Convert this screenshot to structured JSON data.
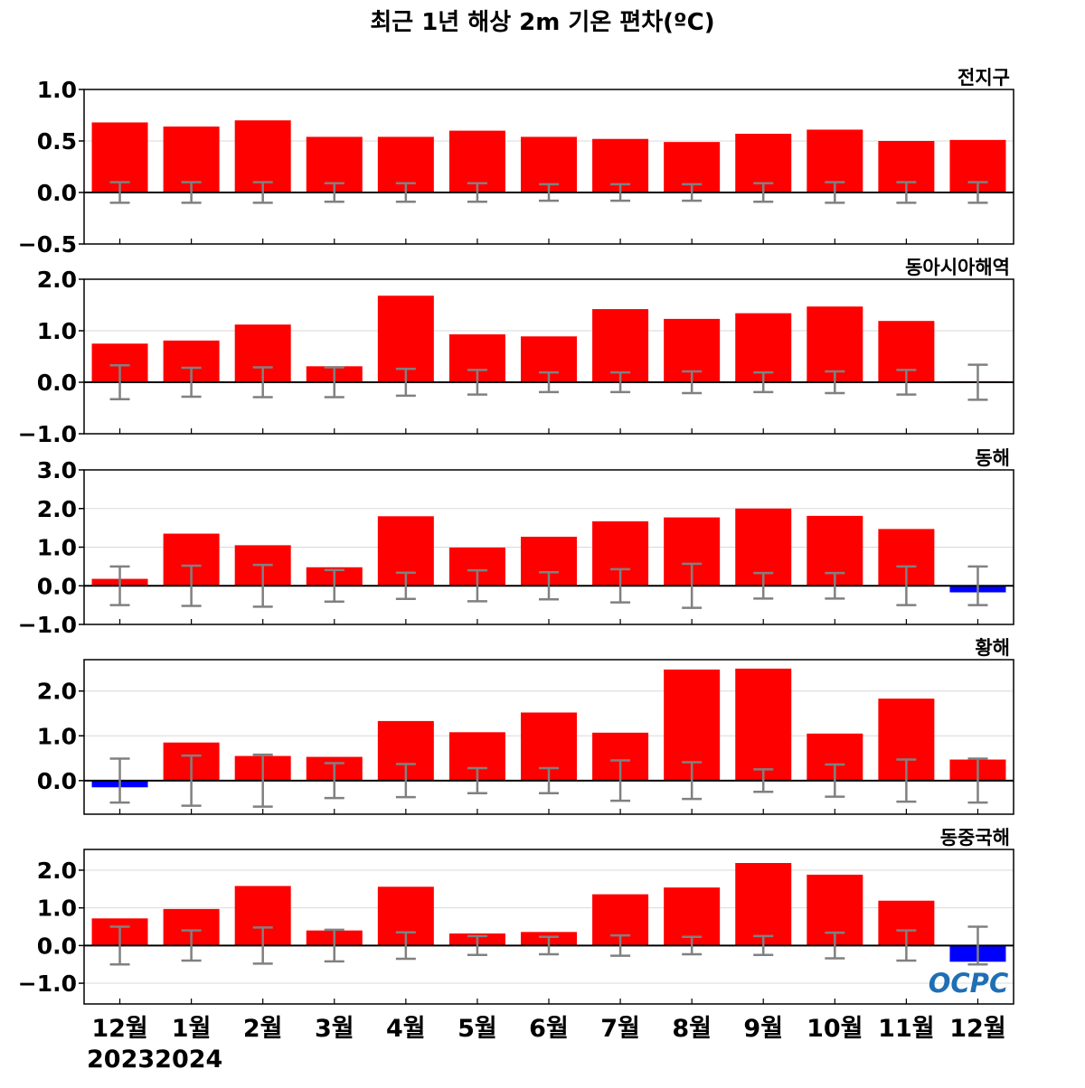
{
  "figure": {
    "title": "최근 1년 해상 2m 기온 편차(ºC)",
    "logo_text": "OCPC",
    "year_labels": [
      "2023",
      "2024"
    ]
  },
  "colors": {
    "positive": "#ff0000",
    "negative": "#0000ff",
    "error_bar": "#808080",
    "zero_line": "#000000",
    "grid": "#d9d9d9",
    "logo": "#1f6fb4"
  },
  "chart_data": [
    {
      "type": "bar",
      "title": "전지구",
      "categories": [
        "12월",
        "1월",
        "2월",
        "3월",
        "4월",
        "5월",
        "6월",
        "7월",
        "8월",
        "9월",
        "10월",
        "11월",
        "12월"
      ],
      "values": [
        0.68,
        0.64,
        0.7,
        0.54,
        0.54,
        0.6,
        0.54,
        0.52,
        0.49,
        0.57,
        0.61,
        0.5,
        0.51
      ],
      "error": [
        0.1,
        0.1,
        0.1,
        0.09,
        0.09,
        0.09,
        0.08,
        0.08,
        0.08,
        0.09,
        0.1,
        0.1,
        0.1
      ],
      "ylim": [
        -0.5,
        1.0
      ],
      "yticks": [
        -0.5,
        0.0,
        0.5,
        1.0
      ],
      "yticklabels": [
        "−0.5",
        "0.0",
        "0.5",
        "1.0"
      ],
      "grid": true
    },
    {
      "type": "bar",
      "title": "동아시아해역",
      "categories": [
        "12월",
        "1월",
        "2월",
        "3월",
        "4월",
        "5월",
        "6월",
        "7월",
        "8월",
        "9월",
        "10월",
        "11월",
        "12월"
      ],
      "values": [
        0.75,
        0.81,
        1.12,
        0.31,
        1.68,
        0.93,
        0.89,
        1.42,
        1.23,
        1.34,
        1.47,
        1.19,
        0.02
      ],
      "error": [
        0.33,
        0.28,
        0.29,
        0.29,
        0.26,
        0.24,
        0.19,
        0.19,
        0.21,
        0.19,
        0.21,
        0.24,
        0.34
      ],
      "ylim": [
        -1.0,
        2.0
      ],
      "yticks": [
        -1.0,
        0.0,
        1.0,
        2.0
      ],
      "yticklabels": [
        "−1.0",
        "0.0",
        "1.0",
        "2.0"
      ],
      "grid": true
    },
    {
      "type": "bar",
      "title": "동해",
      "categories": [
        "12월",
        "1월",
        "2월",
        "3월",
        "4월",
        "5월",
        "6월",
        "7월",
        "8월",
        "9월",
        "10월",
        "11월",
        "12월"
      ],
      "values": [
        0.18,
        1.35,
        1.05,
        0.48,
        1.8,
        0.99,
        1.27,
        1.67,
        1.77,
        2.0,
        1.81,
        1.47,
        -0.17
      ],
      "error": [
        0.5,
        0.52,
        0.54,
        0.41,
        0.34,
        0.4,
        0.35,
        0.43,
        0.57,
        0.33,
        0.33,
        0.5,
        0.5
      ],
      "ylim": [
        -1.0,
        3.0
      ],
      "yticks": [
        -1.0,
        0.0,
        1.0,
        2.0,
        3.0
      ],
      "yticklabels": [
        "−1.0",
        "0.0",
        "1.0",
        "2.0",
        "3.0"
      ],
      "grid": true
    },
    {
      "type": "bar",
      "title": "황해",
      "categories": [
        "12월",
        "1월",
        "2월",
        "3월",
        "4월",
        "5월",
        "6월",
        "7월",
        "8월",
        "9월",
        "10월",
        "11월",
        "12월"
      ],
      "values": [
        -0.15,
        0.85,
        0.55,
        0.53,
        1.33,
        1.08,
        1.52,
        1.07,
        2.48,
        2.5,
        1.05,
        1.83,
        0.47
      ],
      "error": [
        0.49,
        0.56,
        0.58,
        0.39,
        0.37,
        0.28,
        0.28,
        0.45,
        0.41,
        0.25,
        0.36,
        0.47,
        0.49
      ],
      "ylim": [
        -0.75,
        2.7
      ],
      "yticks": [
        0.0,
        1.0,
        2.0
      ],
      "yticklabels": [
        "0.0",
        "1.0",
        "2.0"
      ],
      "grid": true
    },
    {
      "type": "bar",
      "title": "동중국해",
      "categories": [
        "12월",
        "1월",
        "2월",
        "3월",
        "4월",
        "5월",
        "6월",
        "7월",
        "8월",
        "9월",
        "10월",
        "11월",
        "12월"
      ],
      "values": [
        0.72,
        0.97,
        1.58,
        0.4,
        1.56,
        0.32,
        0.36,
        1.36,
        1.54,
        2.19,
        1.88,
        1.19,
        -0.43
      ],
      "error": [
        0.5,
        0.4,
        0.48,
        0.42,
        0.35,
        0.25,
        0.23,
        0.27,
        0.23,
        0.25,
        0.34,
        0.4,
        0.5
      ],
      "ylim": [
        -1.55,
        2.55
      ],
      "yticks": [
        -1.0,
        0.0,
        1.0,
        2.0
      ],
      "yticklabels": [
        "−1.0",
        "0.0",
        "1.0",
        "2.0"
      ],
      "grid": true
    }
  ]
}
